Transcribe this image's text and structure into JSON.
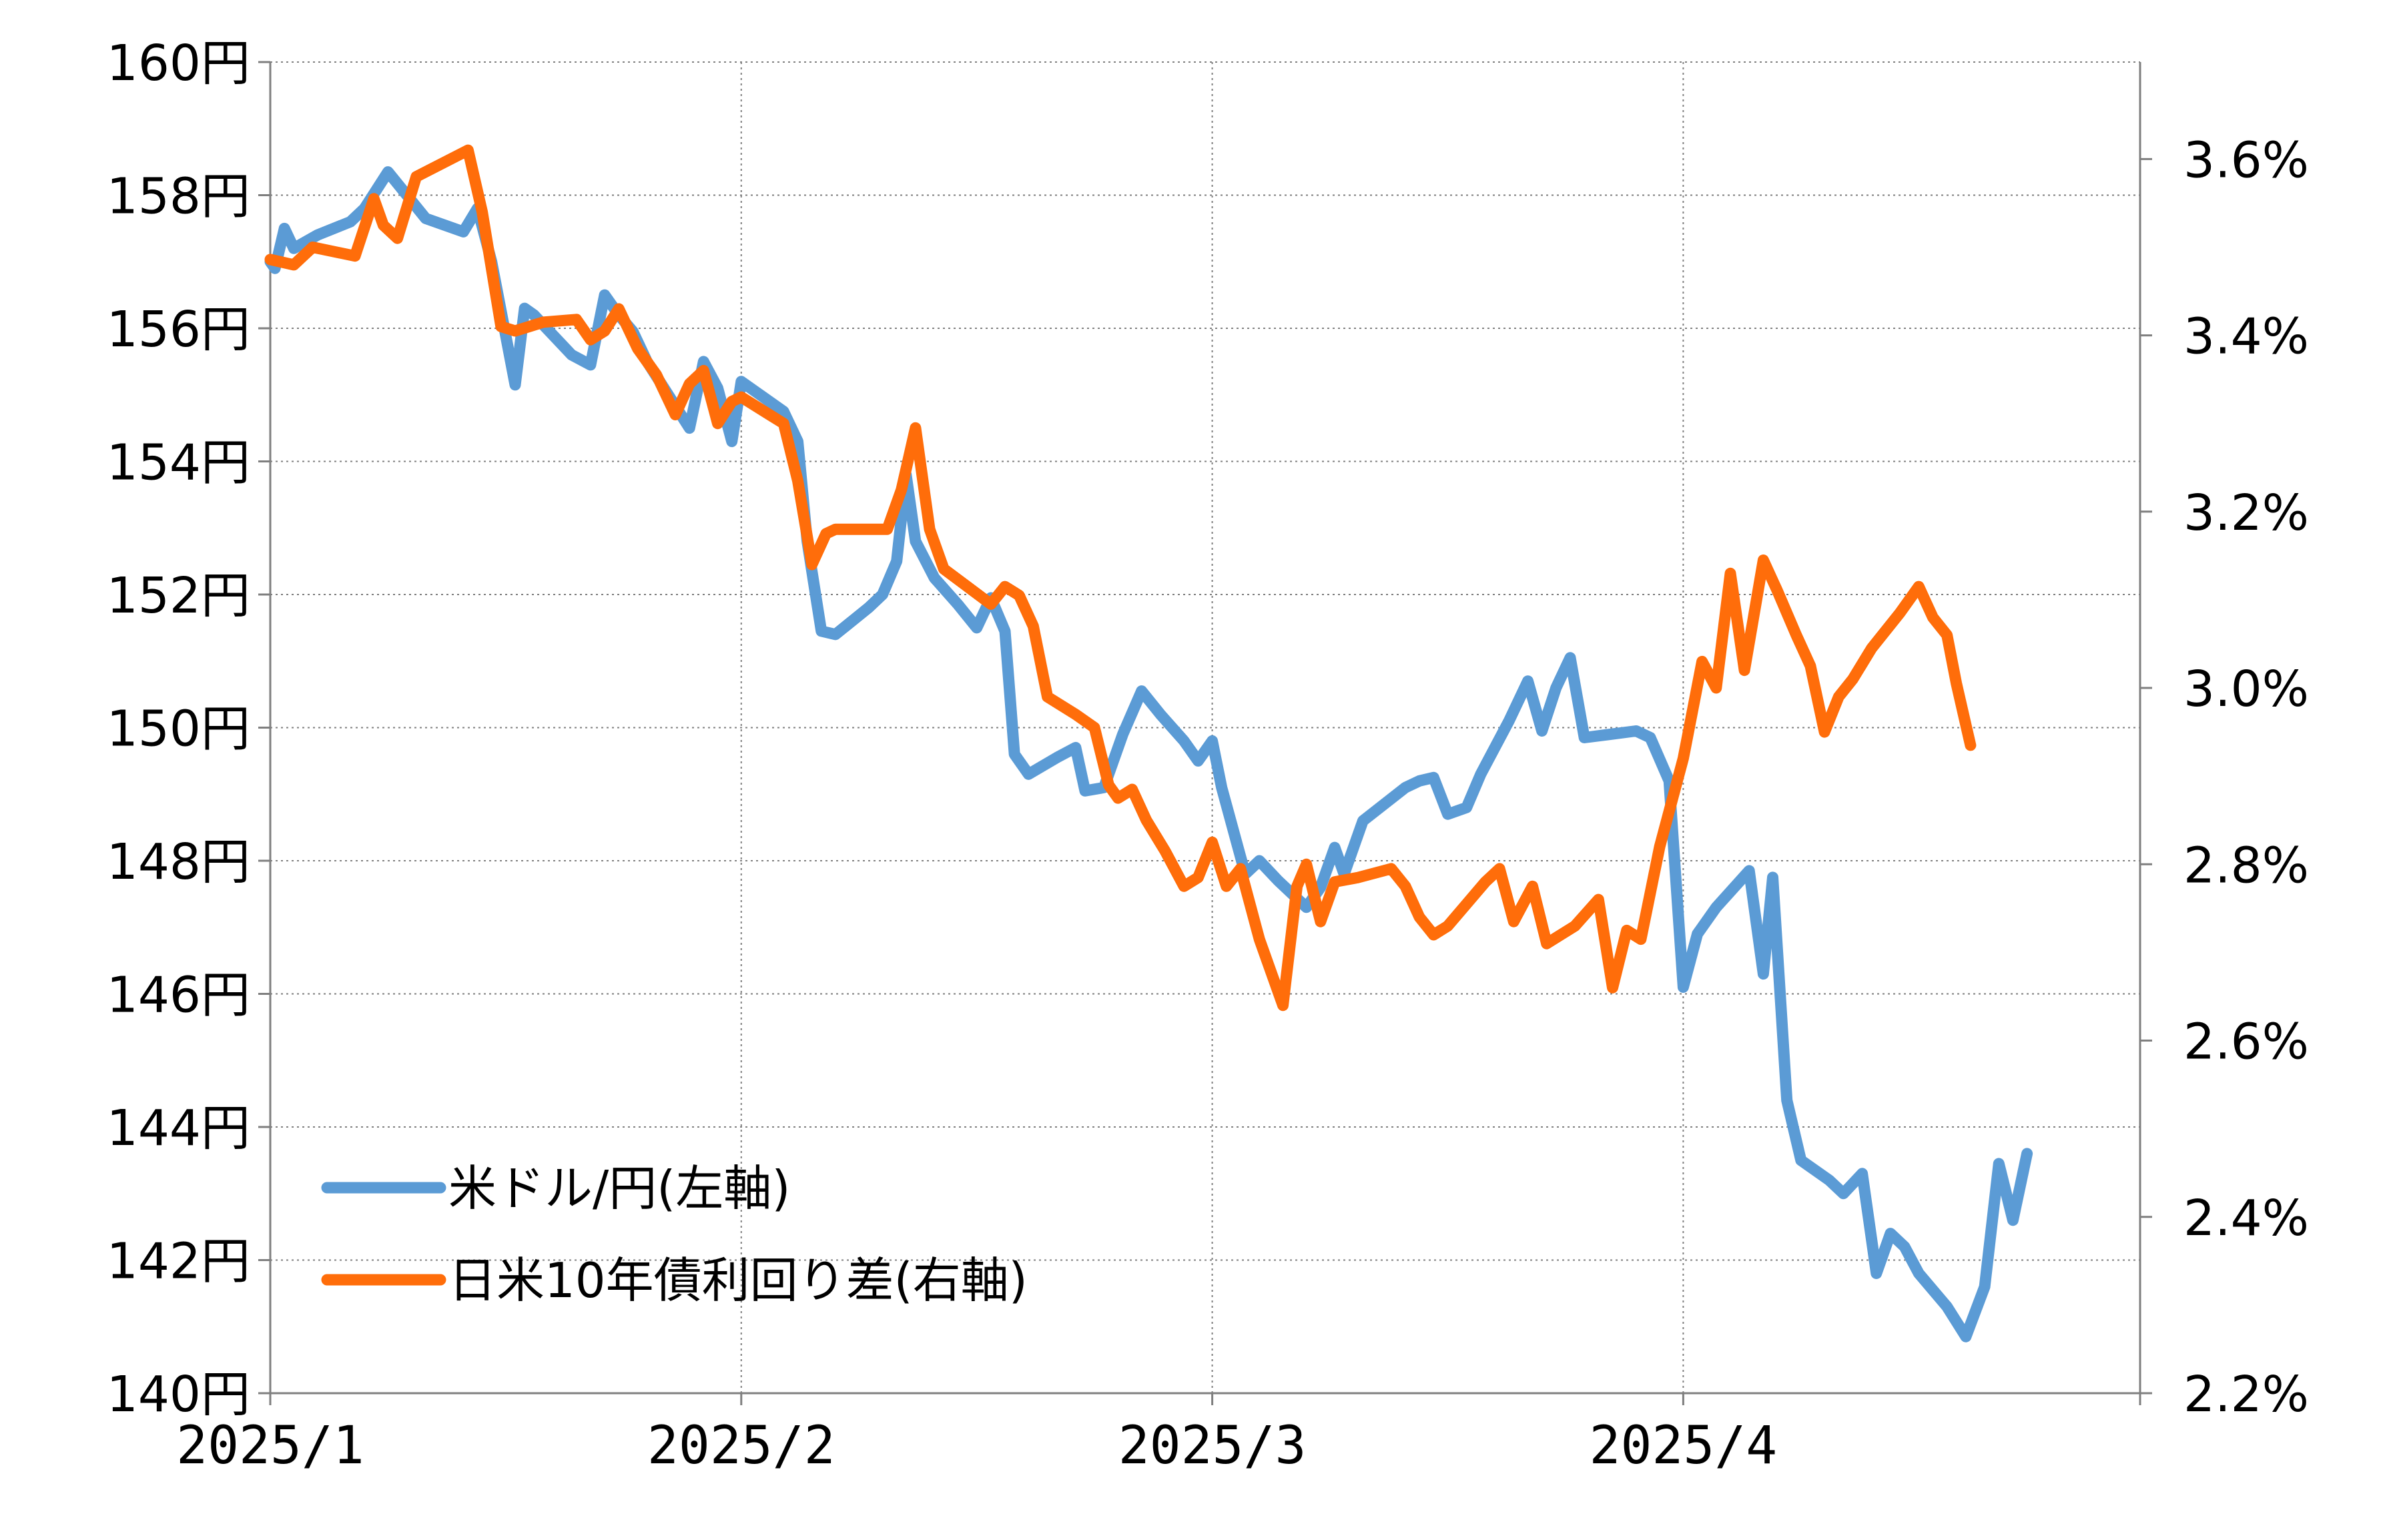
{
  "chart_data": {
    "type": "line",
    "title": "",
    "left_axis": {
      "ticks": [
        "160円",
        "158円",
        "156円",
        "154円",
        "152円",
        "150円",
        "148円",
        "146円",
        "144円",
        "142円",
        "140円"
      ],
      "range": [
        140,
        160
      ]
    },
    "right_axis": {
      "ticks": [
        "3.6%",
        "3.4%",
        "3.2%",
        "3.0%",
        "2.8%",
        "2.6%",
        "2.4%",
        "2.2%"
      ],
      "range": [
        2.2,
        3.71
      ]
    },
    "x_axis": {
      "ticks": [
        "2025/1",
        "2025/2",
        "2025/3",
        "2025/4"
      ],
      "range": [
        1,
        4.97
      ]
    },
    "grid": "dotted",
    "legend_position": "bottom-left",
    "series": [
      {
        "name": "米ドル/円(左軸)",
        "axis": "left",
        "color": "#5B9BD5",
        "points": [
          [
            1.0,
            157.0
          ],
          [
            1.01,
            156.9
          ],
          [
            1.03,
            157.5
          ],
          [
            1.05,
            157.2
          ],
          [
            1.1,
            157.4
          ],
          [
            1.17,
            157.6
          ],
          [
            1.2,
            157.8
          ],
          [
            1.25,
            158.35
          ],
          [
            1.29,
            158.0
          ],
          [
            1.33,
            157.65
          ],
          [
            1.41,
            157.45
          ],
          [
            1.44,
            157.8
          ],
          [
            1.47,
            157.0
          ],
          [
            1.52,
            155.15
          ],
          [
            1.54,
            156.3
          ],
          [
            1.56,
            156.2
          ],
          [
            1.64,
            155.6
          ],
          [
            1.68,
            155.45
          ],
          [
            1.71,
            156.5
          ],
          [
            1.74,
            156.2
          ],
          [
            1.77,
            155.95
          ],
          [
            1.8,
            155.5
          ],
          [
            1.89,
            154.5
          ],
          [
            1.92,
            155.5
          ],
          [
            1.95,
            155.1
          ],
          [
            1.98,
            154.3
          ],
          [
            2.0,
            155.2
          ],
          [
            2.06,
            154.9
          ],
          [
            2.09,
            154.75
          ],
          [
            2.12,
            154.3
          ],
          [
            2.14,
            152.8
          ],
          [
            2.17,
            151.45
          ],
          [
            2.2,
            151.4
          ],
          [
            2.27,
            151.8
          ],
          [
            2.3,
            152.0
          ],
          [
            2.33,
            152.5
          ],
          [
            2.35,
            153.8
          ],
          [
            2.37,
            152.8
          ],
          [
            2.41,
            152.25
          ],
          [
            2.46,
            151.85
          ],
          [
            2.5,
            151.5
          ],
          [
            2.53,
            151.95
          ],
          [
            2.56,
            151.45
          ],
          [
            2.58,
            149.6
          ],
          [
            2.61,
            149.3
          ],
          [
            2.67,
            149.55
          ],
          [
            2.71,
            149.7
          ],
          [
            2.73,
            149.05
          ],
          [
            2.77,
            149.1
          ],
          [
            2.81,
            149.9
          ],
          [
            2.85,
            150.55
          ],
          [
            2.89,
            150.2
          ],
          [
            2.94,
            149.8
          ],
          [
            2.97,
            149.5
          ],
          [
            3.0,
            149.8
          ],
          [
            3.02,
            149.1
          ],
          [
            3.07,
            147.8
          ],
          [
            3.1,
            148.0
          ],
          [
            3.14,
            147.7
          ],
          [
            3.2,
            147.3
          ],
          [
            3.23,
            147.6
          ],
          [
            3.26,
            148.2
          ],
          [
            3.28,
            147.8
          ],
          [
            3.32,
            148.6
          ],
          [
            3.41,
            149.1
          ],
          [
            3.44,
            149.2
          ],
          [
            3.47,
            149.25
          ],
          [
            3.5,
            148.7
          ],
          [
            3.54,
            148.8
          ],
          [
            3.57,
            149.3
          ],
          [
            3.63,
            150.1
          ],
          [
            3.67,
            150.7
          ],
          [
            3.7,
            149.95
          ],
          [
            3.73,
            150.6
          ],
          [
            3.76,
            151.05
          ],
          [
            3.79,
            149.85
          ],
          [
            3.9,
            149.95
          ],
          [
            3.93,
            149.85
          ],
          [
            3.97,
            149.2
          ],
          [
            4.0,
            146.1
          ],
          [
            4.03,
            146.9
          ],
          [
            4.07,
            147.3
          ],
          [
            4.14,
            147.85
          ],
          [
            4.17,
            146.3
          ],
          [
            4.19,
            147.75
          ],
          [
            4.22,
            144.4
          ],
          [
            4.25,
            143.5
          ],
          [
            4.31,
            143.2
          ],
          [
            4.34,
            143.0
          ],
          [
            4.38,
            143.3
          ],
          [
            4.41,
            141.8
          ],
          [
            4.44,
            142.4
          ],
          [
            4.47,
            142.2
          ],
          [
            4.5,
            141.8
          ],
          [
            4.56,
            141.3
          ],
          [
            4.6,
            140.85
          ],
          [
            4.64,
            141.6
          ],
          [
            4.67,
            143.45
          ],
          [
            4.7,
            142.6
          ],
          [
            4.73,
            143.6
          ]
        ]
      },
      {
        "name": "日米10年債利回り差(右軸)",
        "axis": "right",
        "color": "#FF6D0A",
        "points": [
          [
            1.0,
            3.486
          ],
          [
            1.05,
            3.48
          ],
          [
            1.09,
            3.5
          ],
          [
            1.18,
            3.49
          ],
          [
            1.22,
            3.555
          ],
          [
            1.24,
            3.525
          ],
          [
            1.27,
            3.51
          ],
          [
            1.31,
            3.58
          ],
          [
            1.42,
            3.61
          ],
          [
            1.45,
            3.54
          ],
          [
            1.49,
            3.41
          ],
          [
            1.52,
            3.405
          ],
          [
            1.58,
            3.415
          ],
          [
            1.65,
            3.418
          ],
          [
            1.68,
            3.395
          ],
          [
            1.71,
            3.405
          ],
          [
            1.74,
            3.43
          ],
          [
            1.78,
            3.385
          ],
          [
            1.82,
            3.355
          ],
          [
            1.86,
            3.31
          ],
          [
            1.89,
            3.345
          ],
          [
            1.92,
            3.36
          ],
          [
            1.95,
            3.3
          ],
          [
            1.98,
            3.325
          ],
          [
            2.0,
            3.33
          ],
          [
            2.06,
            3.31
          ],
          [
            2.09,
            3.3
          ],
          [
            2.12,
            3.235
          ],
          [
            2.15,
            3.14
          ],
          [
            2.18,
            3.175
          ],
          [
            2.2,
            3.18
          ],
          [
            2.24,
            3.18
          ],
          [
            2.31,
            3.18
          ],
          [
            2.34,
            3.225
          ],
          [
            2.37,
            3.295
          ],
          [
            2.4,
            3.18
          ],
          [
            2.43,
            3.135
          ],
          [
            2.48,
            3.115
          ],
          [
            2.53,
            3.095
          ],
          [
            2.56,
            3.115
          ],
          [
            2.59,
            3.105
          ],
          [
            2.62,
            3.07
          ],
          [
            2.65,
            2.99
          ],
          [
            2.71,
            2.97
          ],
          [
            2.75,
            2.955
          ],
          [
            2.78,
            2.89
          ],
          [
            2.8,
            2.875
          ],
          [
            2.83,
            2.885
          ],
          [
            2.86,
            2.85
          ],
          [
            2.9,
            2.815
          ],
          [
            2.94,
            2.775
          ],
          [
            2.97,
            2.785
          ],
          [
            3.0,
            2.825
          ],
          [
            3.03,
            2.775
          ],
          [
            3.06,
            2.795
          ],
          [
            3.1,
            2.715
          ],
          [
            3.15,
            2.64
          ],
          [
            3.18,
            2.775
          ],
          [
            3.2,
            2.8
          ],
          [
            3.23,
            2.735
          ],
          [
            3.26,
            2.78
          ],
          [
            3.31,
            2.785
          ],
          [
            3.38,
            2.795
          ],
          [
            3.41,
            2.775
          ],
          [
            3.44,
            2.74
          ],
          [
            3.47,
            2.72
          ],
          [
            3.5,
            2.73
          ],
          [
            3.54,
            2.755
          ],
          [
            3.58,
            2.78
          ],
          [
            3.61,
            2.795
          ],
          [
            3.64,
            2.735
          ],
          [
            3.68,
            2.775
          ],
          [
            3.71,
            2.71
          ],
          [
            3.77,
            2.73
          ],
          [
            3.82,
            2.76
          ],
          [
            3.85,
            2.66
          ],
          [
            3.88,
            2.725
          ],
          [
            3.91,
            2.715
          ],
          [
            3.95,
            2.82
          ],
          [
            4.0,
            2.92
          ],
          [
            4.04,
            3.03
          ],
          [
            4.07,
            3.0
          ],
          [
            4.1,
            3.13
          ],
          [
            4.13,
            3.02
          ],
          [
            4.17,
            3.145
          ],
          [
            4.2,
            3.11
          ],
          [
            4.24,
            3.06
          ],
          [
            4.27,
            3.025
          ],
          [
            4.3,
            2.95
          ],
          [
            4.33,
            2.99
          ],
          [
            4.36,
            3.01
          ],
          [
            4.4,
            3.045
          ],
          [
            4.46,
            3.085
          ],
          [
            4.5,
            3.115
          ],
          [
            4.53,
            3.08
          ],
          [
            4.56,
            3.06
          ],
          [
            4.58,
            3.005
          ],
          [
            4.61,
            2.935
          ]
        ]
      }
    ]
  }
}
